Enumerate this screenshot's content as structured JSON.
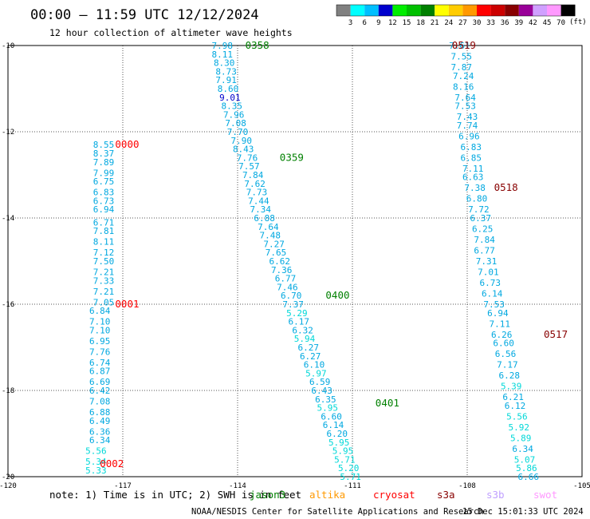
{
  "header": {
    "title": "00:00 — 11:59 UTC 12/12/2024",
    "subtitle": "12 hour collection of altimeter wave heights"
  },
  "legend": {
    "unit": "(ft)",
    "labels": [
      "3",
      "6",
      "9",
      "12",
      "15",
      "18",
      "21",
      "24",
      "27",
      "30",
      "33",
      "36",
      "39",
      "42",
      "45",
      "70"
    ],
    "colors": [
      "#808080",
      "#00ffff",
      "#00bfff",
      "#0000cd",
      "#00ee00",
      "#00c000",
      "#008000",
      "#ffff00",
      "#ffcc00",
      "#ff9900",
      "#ff0000",
      "#cc0000",
      "#880000",
      "#990099",
      "#d0a0ff",
      "#ff99ff",
      "#000000"
    ]
  },
  "note": {
    "text": "note: 1) Time is in UTC; 2) SWH is in feet",
    "satellites": [
      {
        "name": "jason3",
        "color": "#008000"
      },
      {
        "name": "altika",
        "color": "#ff9900"
      },
      {
        "name": "cryosat",
        "color": "#ff0000"
      },
      {
        "name": "s3a",
        "color": "#880000"
      },
      {
        "name": "s3b",
        "color": "#c0a0ff"
      },
      {
        "name": "swot",
        "color": "#ff99ff"
      }
    ]
  },
  "footer": {
    "credit": "NOAA/NESDIS Center for Satellite Applications and Research",
    "timestamp": "15 Dec 15:01:33 UTC 2024"
  },
  "chart_data": {
    "type": "scatter",
    "xlim": [
      -120,
      -105
    ],
    "ylim": [
      -20,
      -10
    ],
    "xticks": [
      "-120",
      "-117",
      "-114",
      "-111",
      "-108",
      "-105"
    ],
    "yticks": [
      "-10",
      "-12",
      "-14",
      "-16",
      "-18",
      "-20"
    ],
    "grid": true,
    "passes": [
      {
        "label": "0000",
        "lon": -117.2,
        "lat": -12.3,
        "color": "#ff0000"
      },
      {
        "label": "0001",
        "lon": -117.2,
        "lat": -16.0,
        "color": "#ff0000"
      },
      {
        "label": "0002",
        "lon": -117.6,
        "lat": -19.7,
        "color": "#ff0000"
      },
      {
        "label": "0358",
        "lon": -113.8,
        "lat": -10.0,
        "color": "#008000"
      },
      {
        "label": "0359",
        "lon": -112.9,
        "lat": -12.6,
        "color": "#008000"
      },
      {
        "label": "0400",
        "lon": -111.7,
        "lat": -15.8,
        "color": "#008000"
      },
      {
        "label": "0401",
        "lon": -110.4,
        "lat": -18.3,
        "color": "#008000"
      },
      {
        "label": "0519",
        "lon": -108.4,
        "lat": -10.0,
        "color": "#880000"
      },
      {
        "label": "0518",
        "lon": -107.3,
        "lat": -13.3,
        "color": "#880000"
      },
      {
        "label": "0517",
        "lon": -106.0,
        "lat": -16.7,
        "color": "#880000"
      }
    ],
    "tracks": [
      {
        "points": [
          {
            "lon": -117.5,
            "lat": -12.3,
            "v": "8.55"
          },
          {
            "lon": -117.5,
            "lat": -12.5,
            "v": "8.37"
          },
          {
            "lon": -117.5,
            "lat": -12.7,
            "v": "7.89"
          },
          {
            "lon": -117.5,
            "lat": -12.95,
            "v": "7.99"
          },
          {
            "lon": -117.5,
            "lat": -13.15,
            "v": "6.75"
          },
          {
            "lon": -117.5,
            "lat": -13.4,
            "v": "6.83"
          },
          {
            "lon": -117.5,
            "lat": -13.6,
            "v": "6.73"
          },
          {
            "lon": -117.5,
            "lat": -13.8,
            "v": "6.94"
          },
          {
            "lon": -117.5,
            "lat": -14.1,
            "v": "6.71"
          },
          {
            "lon": -117.5,
            "lat": -14.3,
            "v": "7.81"
          },
          {
            "lon": -117.5,
            "lat": -14.55,
            "v": "8.11"
          },
          {
            "lon": -117.5,
            "lat": -14.8,
            "v": "7.12"
          },
          {
            "lon": -117.5,
            "lat": -15.0,
            "v": "7.50"
          },
          {
            "lon": -117.5,
            "lat": -15.25,
            "v": "7.21"
          },
          {
            "lon": -117.5,
            "lat": -15.45,
            "v": "7.33"
          },
          {
            "lon": -117.5,
            "lat": -15.7,
            "v": "7.21"
          },
          {
            "lon": -117.5,
            "lat": -15.95,
            "v": "7.05"
          },
          {
            "lon": -117.6,
            "lat": -16.15,
            "v": "6.84"
          },
          {
            "lon": -117.6,
            "lat": -16.4,
            "v": "7.10"
          },
          {
            "lon": -117.6,
            "lat": -16.6,
            "v": "7.10"
          },
          {
            "lon": -117.6,
            "lat": -16.85,
            "v": "6.95"
          },
          {
            "lon": -117.6,
            "lat": -17.1,
            "v": "7.76"
          },
          {
            "lon": -117.6,
            "lat": -17.35,
            "v": "6.74"
          },
          {
            "lon": -117.6,
            "lat": -17.55,
            "v": "6.87"
          },
          {
            "lon": -117.6,
            "lat": -17.8,
            "v": "6.69"
          },
          {
            "lon": -117.6,
            "lat": -18.0,
            "v": "6.42"
          },
          {
            "lon": -117.6,
            "lat": -18.25,
            "v": "7.08"
          },
          {
            "lon": -117.6,
            "lat": -18.5,
            "v": "6.88"
          },
          {
            "lon": -117.6,
            "lat": -18.7,
            "v": "6.49"
          },
          {
            "lon": -117.6,
            "lat": -18.95,
            "v": "6.36"
          },
          {
            "lon": -117.6,
            "lat": -19.15,
            "v": "6.34"
          },
          {
            "lon": -117.7,
            "lat": -19.4,
            "v": "5.56"
          },
          {
            "lon": -117.7,
            "lat": -19.65,
            "v": "5.34"
          },
          {
            "lon": -117.7,
            "lat": -19.85,
            "v": "5.33"
          }
        ]
      },
      {
        "points": [
          {
            "lon": -114.4,
            "lat": -10.0,
            "v": "7.98"
          },
          {
            "lon": -114.4,
            "lat": -10.2,
            "v": "8.11"
          },
          {
            "lon": -114.35,
            "lat": -10.4,
            "v": "8.30"
          },
          {
            "lon": -114.3,
            "lat": -10.6,
            "v": "8.73"
          },
          {
            "lon": -114.3,
            "lat": -10.8,
            "v": "7.91"
          },
          {
            "lon": -114.25,
            "lat": -11.0,
            "v": "8.60"
          },
          {
            "lon": -114.2,
            "lat": -11.2,
            "v": "9.01",
            "c": "#0000cd"
          },
          {
            "lon": -114.15,
            "lat": -11.4,
            "v": "8.35"
          },
          {
            "lon": -114.1,
            "lat": -11.6,
            "v": "7.96"
          },
          {
            "lon": -114.05,
            "lat": -11.8,
            "v": "7.08"
          },
          {
            "lon": -114.0,
            "lat": -12.0,
            "v": "7.70"
          },
          {
            "lon": -113.9,
            "lat": -12.2,
            "v": "7.90"
          },
          {
            "lon": -113.85,
            "lat": -12.4,
            "v": "8.43"
          },
          {
            "lon": -113.75,
            "lat": -12.6,
            "v": "7.76"
          },
          {
            "lon": -113.7,
            "lat": -12.8,
            "v": "7.57"
          },
          {
            "lon": -113.6,
            "lat": -13.0,
            "v": "7.84"
          },
          {
            "lon": -113.55,
            "lat": -13.2,
            "v": "7.62"
          },
          {
            "lon": -113.5,
            "lat": -13.4,
            "v": "7.73"
          },
          {
            "lon": -113.45,
            "lat": -13.6,
            "v": "7.44"
          },
          {
            "lon": -113.4,
            "lat": -13.8,
            "v": "7.34"
          },
          {
            "lon": -113.3,
            "lat": -14.0,
            "v": "6.88"
          },
          {
            "lon": -113.2,
            "lat": -14.2,
            "v": "7.64"
          },
          {
            "lon": -113.15,
            "lat": -14.4,
            "v": "7.48"
          },
          {
            "lon": -113.05,
            "lat": -14.6,
            "v": "7.27"
          },
          {
            "lon": -113.0,
            "lat": -14.8,
            "v": "7.65"
          },
          {
            "lon": -112.9,
            "lat": -15.0,
            "v": "6.62"
          },
          {
            "lon": -112.85,
            "lat": -15.2,
            "v": "7.36"
          },
          {
            "lon": -112.75,
            "lat": -15.4,
            "v": "6.77"
          },
          {
            "lon": -112.7,
            "lat": -15.6,
            "v": "7.46"
          },
          {
            "lon": -112.6,
            "lat": -15.8,
            "v": "6.70"
          },
          {
            "lon": -112.55,
            "lat": -16.0,
            "v": "7.37"
          },
          {
            "lon": -112.45,
            "lat": -16.2,
            "v": "5.29"
          },
          {
            "lon": -112.4,
            "lat": -16.4,
            "v": "6.17"
          },
          {
            "lon": -112.3,
            "lat": -16.6,
            "v": "6.32"
          },
          {
            "lon": -112.25,
            "lat": -16.8,
            "v": "5.94"
          },
          {
            "lon": -112.15,
            "lat": -17.0,
            "v": "6.27"
          },
          {
            "lon": -112.1,
            "lat": -17.2,
            "v": "6.27"
          },
          {
            "lon": -112.0,
            "lat": -17.4,
            "v": "6.10"
          },
          {
            "lon": -111.95,
            "lat": -17.6,
            "v": "5.97"
          },
          {
            "lon": -111.85,
            "lat": -17.8,
            "v": "6.59"
          },
          {
            "lon": -111.8,
            "lat": -18.0,
            "v": "6.43"
          },
          {
            "lon": -111.7,
            "lat": -18.2,
            "v": "6.35"
          },
          {
            "lon": -111.65,
            "lat": -18.4,
            "v": "5.95"
          },
          {
            "lon": -111.55,
            "lat": -18.6,
            "v": "6.60"
          },
          {
            "lon": -111.5,
            "lat": -18.8,
            "v": "6.14"
          },
          {
            "lon": -111.4,
            "lat": -19.0,
            "v": "6.20"
          },
          {
            "lon": -111.35,
            "lat": -19.2,
            "v": "5.95"
          },
          {
            "lon": -111.25,
            "lat": -19.4,
            "v": "5.95"
          },
          {
            "lon": -111.2,
            "lat": -19.6,
            "v": "5.71"
          },
          {
            "lon": -111.1,
            "lat": -19.8,
            "v": "5.20"
          },
          {
            "lon": -111.05,
            "lat": -20.0,
            "v": "5.71"
          }
        ]
      },
      {
        "points": [
          {
            "lon": -108.2,
            "lat": -10.0,
            "v": "7.61"
          },
          {
            "lon": -108.15,
            "lat": -10.25,
            "v": "7.55"
          },
          {
            "lon": -108.15,
            "lat": -10.5,
            "v": "7.87"
          },
          {
            "lon": -108.1,
            "lat": -10.7,
            "v": "7.24"
          },
          {
            "lon": -108.1,
            "lat": -10.95,
            "v": "8.16"
          },
          {
            "lon": -108.05,
            "lat": -11.2,
            "v": "7.64"
          },
          {
            "lon": -108.05,
            "lat": -11.4,
            "v": "7.53"
          },
          {
            "lon": -108.0,
            "lat": -11.65,
            "v": "7.43"
          },
          {
            "lon": -108.0,
            "lat": -11.85,
            "v": "7.74"
          },
          {
            "lon": -107.95,
            "lat": -12.1,
            "v": "6.96"
          },
          {
            "lon": -107.9,
            "lat": -12.35,
            "v": "6.83"
          },
          {
            "lon": -107.9,
            "lat": -12.6,
            "v": "6.85"
          },
          {
            "lon": -107.85,
            "lat": -12.85,
            "v": "7.11"
          },
          {
            "lon": -107.85,
            "lat": -13.05,
            "v": "6.63"
          },
          {
            "lon": -107.8,
            "lat": -13.3,
            "v": "7.38"
          },
          {
            "lon": -107.75,
            "lat": -13.55,
            "v": "6.80"
          },
          {
            "lon": -107.7,
            "lat": -13.8,
            "v": "7.72"
          },
          {
            "lon": -107.65,
            "lat": -14.0,
            "v": "6.37"
          },
          {
            "lon": -107.6,
            "lat": -14.25,
            "v": "6.25"
          },
          {
            "lon": -107.55,
            "lat": -14.5,
            "v": "7.84"
          },
          {
            "lon": -107.55,
            "lat": -14.75,
            "v": "6.77"
          },
          {
            "lon": -107.5,
            "lat": -15.0,
            "v": "7.31"
          },
          {
            "lon": -107.45,
            "lat": -15.25,
            "v": "7.01"
          },
          {
            "lon": -107.4,
            "lat": -15.5,
            "v": "6.73"
          },
          {
            "lon": -107.35,
            "lat": -15.75,
            "v": "6.14"
          },
          {
            "lon": -107.3,
            "lat": -16.0,
            "v": "7.53"
          },
          {
            "lon": -107.2,
            "lat": -16.2,
            "v": "6.94"
          },
          {
            "lon": -107.15,
            "lat": -16.45,
            "v": "7.11"
          },
          {
            "lon": -107.1,
            "lat": -16.7,
            "v": "6.26"
          },
          {
            "lon": -107.05,
            "lat": -16.9,
            "v": "6.60"
          },
          {
            "lon": -107.0,
            "lat": -17.15,
            "v": "6.56"
          },
          {
            "lon": -106.95,
            "lat": -17.4,
            "v": "7.17"
          },
          {
            "lon": -106.9,
            "lat": -17.65,
            "v": "6.28"
          },
          {
            "lon": -106.85,
            "lat": -17.9,
            "v": "5.39"
          },
          {
            "lon": -106.8,
            "lat": -18.15,
            "v": "6.21"
          },
          {
            "lon": -106.75,
            "lat": -18.35,
            "v": "6.12"
          },
          {
            "lon": -106.7,
            "lat": -18.6,
            "v": "5.56"
          },
          {
            "lon": -106.65,
            "lat": -18.85,
            "v": "5.92"
          },
          {
            "lon": -106.6,
            "lat": -19.1,
            "v": "5.89"
          },
          {
            "lon": -106.55,
            "lat": -19.35,
            "v": "6.34"
          },
          {
            "lon": -106.5,
            "lat": -19.6,
            "v": "5.07"
          },
          {
            "lon": -106.45,
            "lat": -19.8,
            "v": "5.86"
          },
          {
            "lon": -106.4,
            "lat": -20.0,
            "v": "6.66"
          }
        ]
      }
    ]
  }
}
